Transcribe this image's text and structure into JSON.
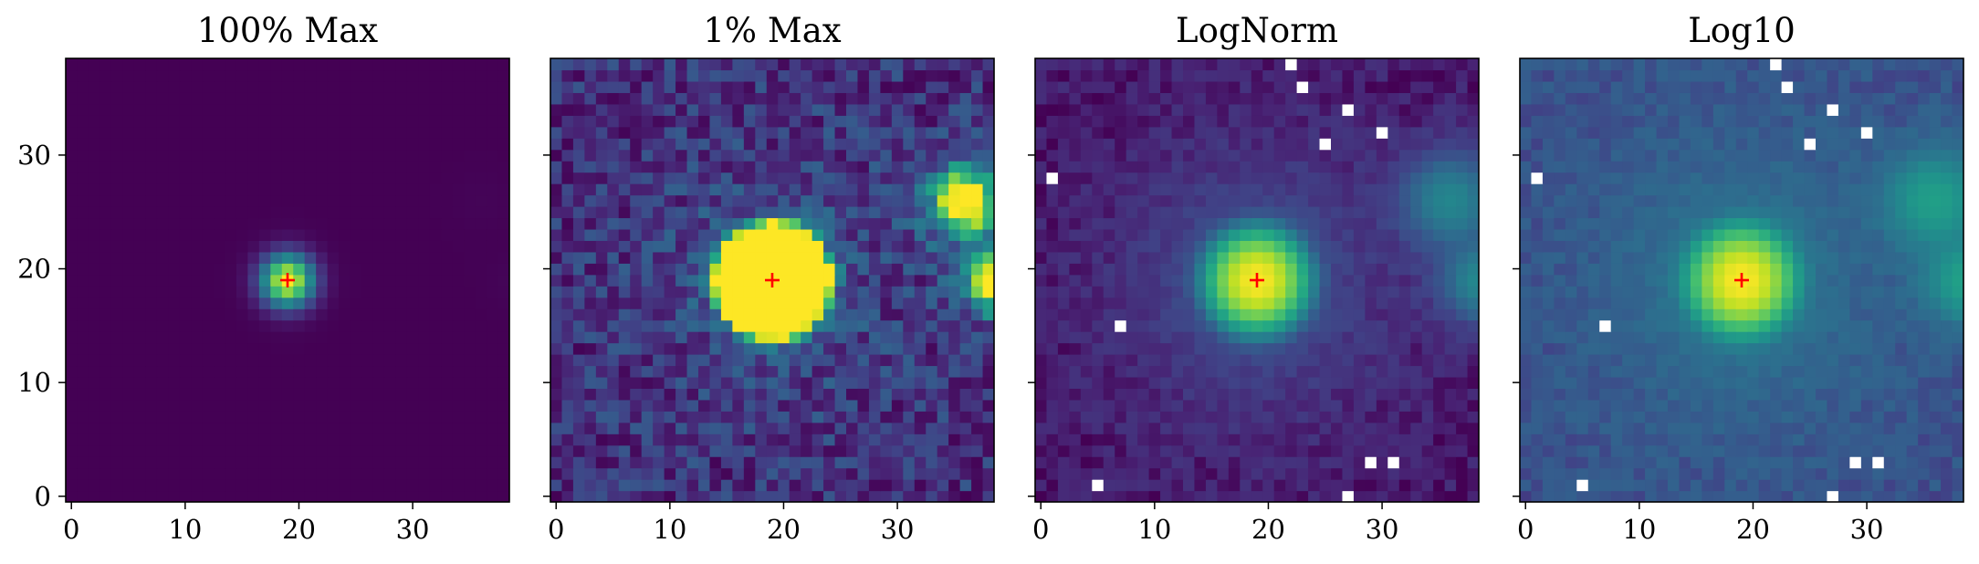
{
  "chart_data": [
    {
      "type": "heatmap",
      "title": "100% Max",
      "colormap": "viridis",
      "norm": "linear",
      "xlim": [
        -0.5,
        38.5
      ],
      "ylim": [
        -0.5,
        38.5
      ],
      "xticks": [
        "0",
        "10",
        "20",
        "30"
      ],
      "yticks": [
        "0",
        "10",
        "20",
        "30"
      ],
      "marker": {
        "shape": "plus",
        "color": "#ff0000",
        "x": 19,
        "y": 19
      },
      "sources": [
        {
          "x": 19,
          "y": 19,
          "peak": 1.0,
          "sigma": 1.6
        },
        {
          "x": 36,
          "y": 26,
          "peak": 0.008,
          "sigma": 1.8
        },
        {
          "x": 39,
          "y": 19,
          "peak": 0.01,
          "sigma": 1.6
        }
      ],
      "masked_pixels": []
    },
    {
      "type": "heatmap",
      "title": "1% Max",
      "colormap": "viridis",
      "norm": "linear (clipped at 1% of max)",
      "xlim": [
        -0.5,
        38.5
      ],
      "ylim": [
        -0.5,
        38.5
      ],
      "xticks": [
        "0",
        "10",
        "20",
        "30"
      ],
      "yticks": [],
      "marker": {
        "shape": "plus",
        "color": "#ff0000",
        "x": 19,
        "y": 19
      }
    },
    {
      "type": "heatmap",
      "title": "LogNorm",
      "colormap": "viridis",
      "norm": "log",
      "xlim": [
        -0.5,
        38.5
      ],
      "ylim": [
        -0.5,
        38.5
      ],
      "xticks": [
        "0",
        "10",
        "20",
        "30"
      ],
      "yticks": [],
      "marker": {
        "shape": "plus",
        "color": "#ff0000",
        "x": 19,
        "y": 19
      },
      "masked_pixels": [
        [
          22,
          38
        ],
        [
          23,
          36
        ],
        [
          27,
          34
        ],
        [
          30,
          32
        ],
        [
          25,
          31
        ],
        [
          1,
          28
        ],
        [
          7,
          15
        ],
        [
          29,
          3
        ],
        [
          31,
          3
        ],
        [
          5,
          1
        ],
        [
          27,
          0
        ]
      ]
    },
    {
      "type": "heatmap",
      "title": "Log10",
      "colormap": "viridis",
      "norm": "log10",
      "xlim": [
        -0.5,
        38.5
      ],
      "ylim": [
        -0.5,
        38.5
      ],
      "xticks": [
        "0",
        "10",
        "20",
        "30"
      ],
      "yticks": [],
      "marker": {
        "shape": "plus",
        "color": "#ff0000",
        "x": 19,
        "y": 19
      },
      "masked_pixels": [
        [
          22,
          38
        ],
        [
          23,
          36
        ],
        [
          27,
          34
        ],
        [
          30,
          32
        ],
        [
          25,
          31
        ],
        [
          1,
          28
        ],
        [
          7,
          15
        ],
        [
          29,
          3
        ],
        [
          31,
          3
        ],
        [
          5,
          1
        ],
        [
          27,
          0
        ]
      ]
    }
  ]
}
